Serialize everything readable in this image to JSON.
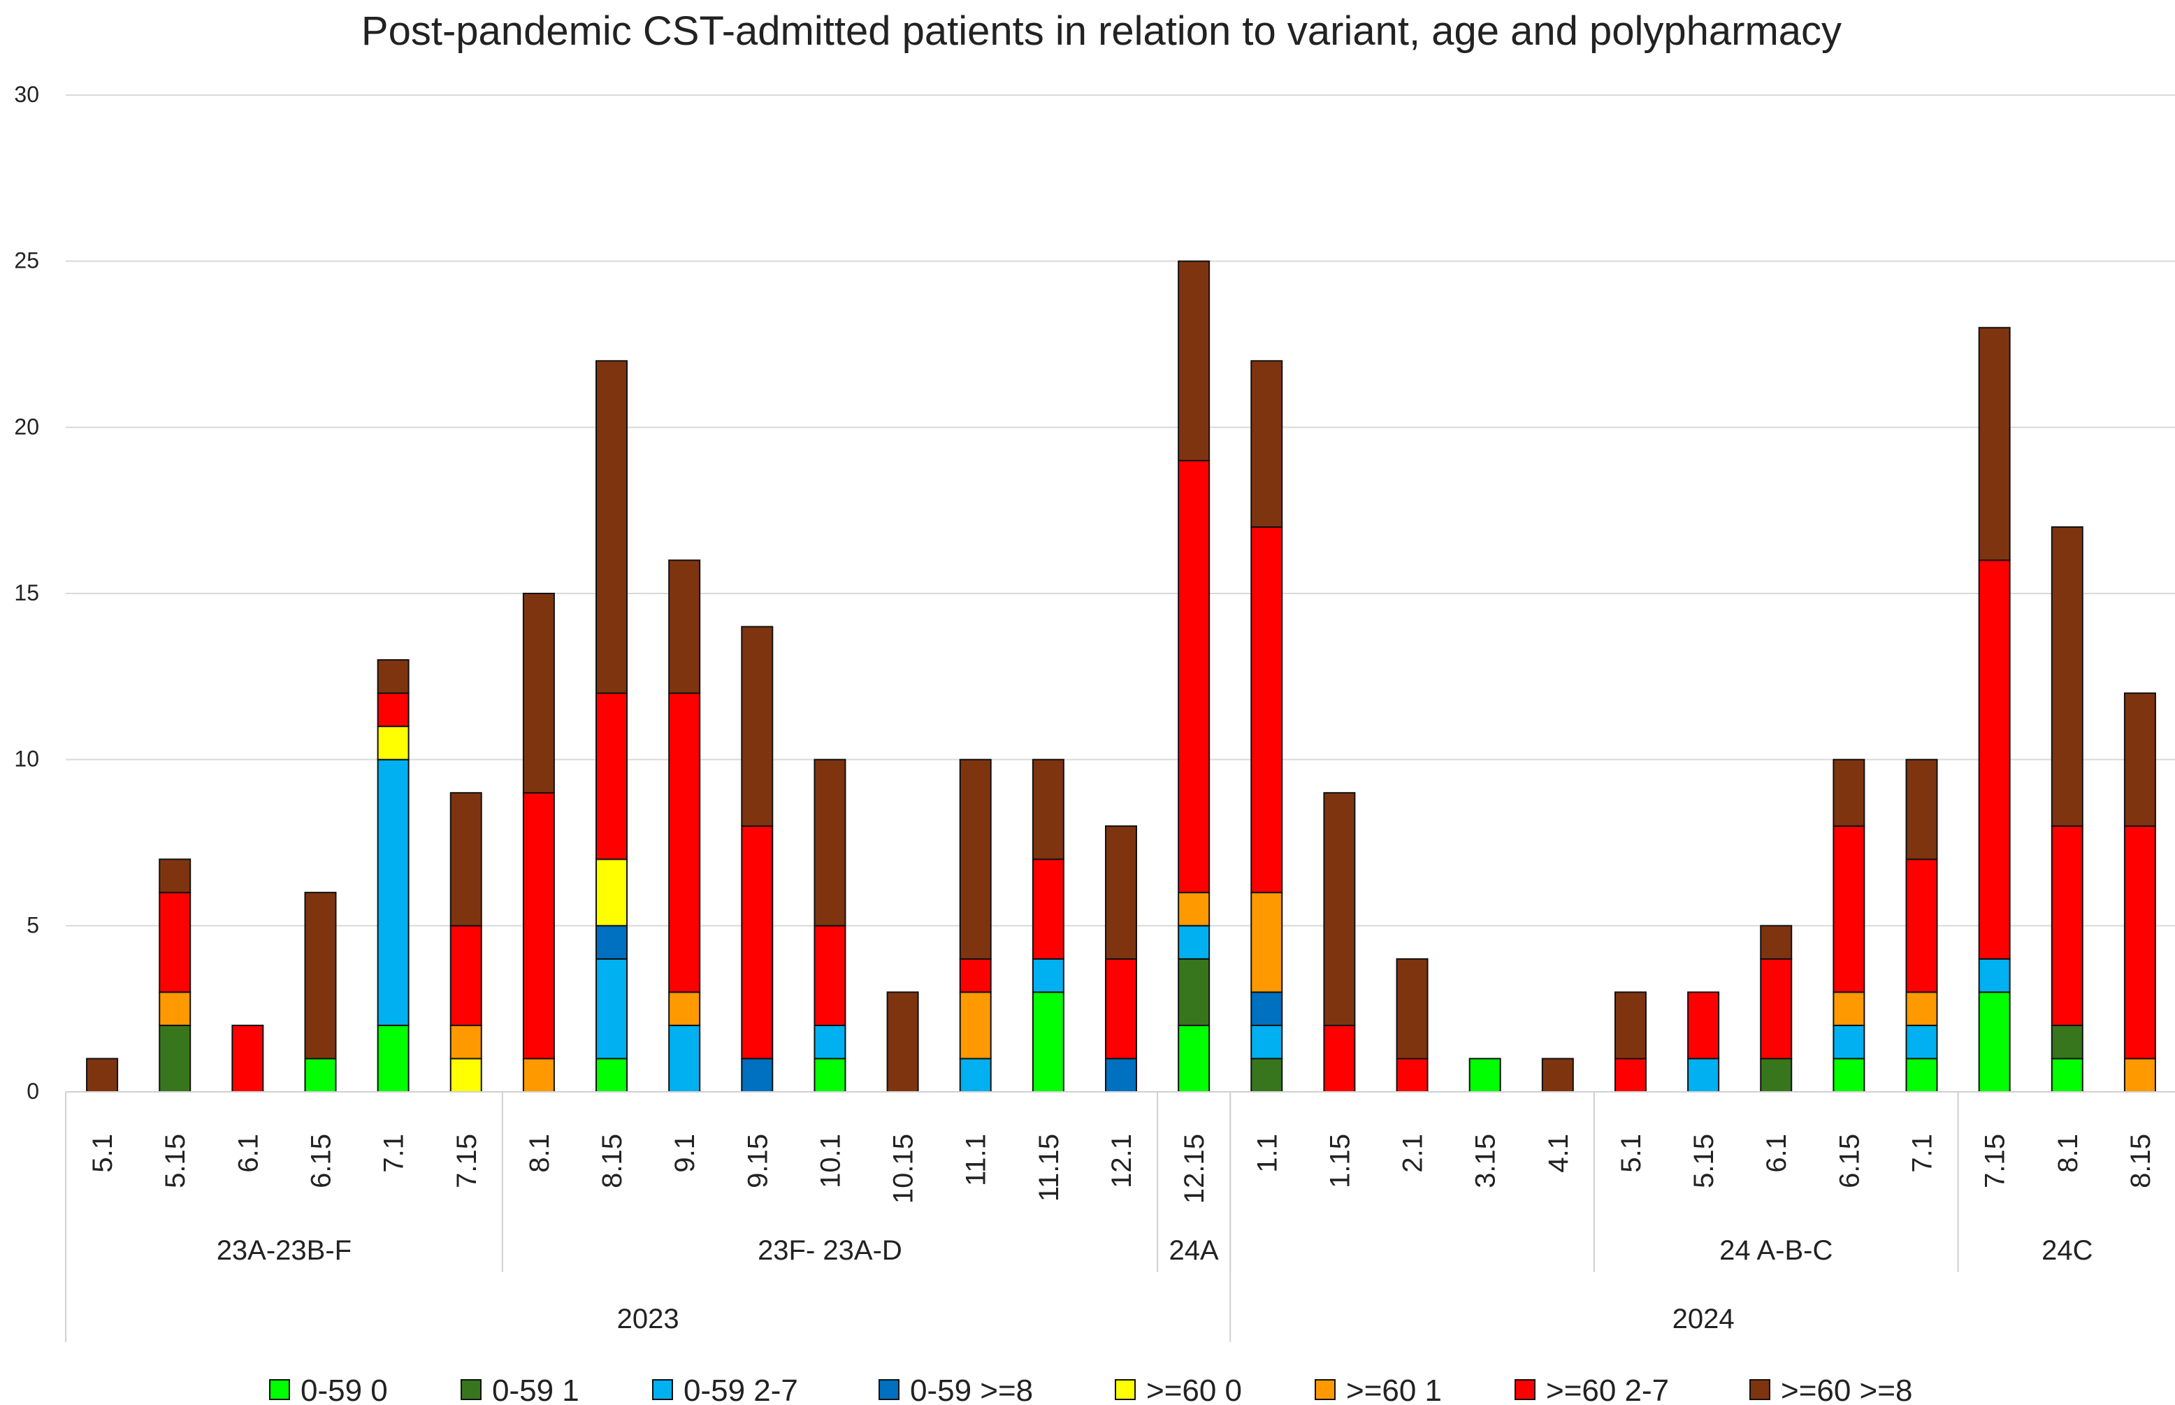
{
  "chart_data": {
    "type": "bar",
    "stacked": true,
    "title": "Post-pandemic CST-admitted patients in relation to variant, age and polypharmacy",
    "xlabel": "",
    "ylabel": "",
    "ylim": [
      0,
      30
    ],
    "yticks": [
      "0",
      "5",
      "10",
      "15",
      "20",
      "25",
      "30"
    ],
    "grid": true,
    "legend_position": "bottom",
    "categories": [
      "5.1",
      "5.15",
      "6.1",
      "6.15",
      "7.1",
      "7.15",
      "8.1",
      "8.15",
      "9.1",
      "9.15",
      "10.1",
      "10.15",
      "11.1",
      "11.15",
      "12.1",
      "12.15",
      "1.1",
      "1.15",
      "2.1",
      "3.15",
      "4.1",
      "5.1",
      "5.15",
      "6.1",
      "6.15",
      "7.1",
      "7.15",
      "8.1",
      "8.15"
    ],
    "variant_groups": [
      {
        "label": "23A-23B-F",
        "start": 0,
        "end": 5
      },
      {
        "label": "23F- 23A-D",
        "start": 6,
        "end": 14
      },
      {
        "label": "24A",
        "start": 15,
        "end": 15
      },
      {
        "label": "",
        "start": 16,
        "end": 20
      },
      {
        "label": "24 A-B-C",
        "start": 21,
        "end": 25
      },
      {
        "label": "24C",
        "start": 26,
        "end": 28
      }
    ],
    "year_groups": [
      {
        "label": "2023",
        "start": 0,
        "end": 15
      },
      {
        "label": "2024",
        "start": 16,
        "end": 28
      }
    ],
    "series": [
      {
        "name": "0-59 0",
        "color": "#00ff00",
        "values": [
          0,
          0,
          0,
          1,
          2,
          0,
          0,
          1,
          0,
          0,
          1,
          0,
          0,
          3,
          0,
          2,
          0,
          0,
          0,
          1,
          0,
          0,
          0,
          0,
          1,
          1,
          3,
          1,
          0
        ]
      },
      {
        "name": "0-59 1",
        "color": "#38761d",
        "values": [
          0,
          2,
          0,
          0,
          0,
          0,
          0,
          0,
          0,
          0,
          0,
          0,
          0,
          0,
          0,
          2,
          1,
          0,
          0,
          0,
          0,
          0,
          0,
          1,
          0,
          0,
          0,
          1,
          0
        ]
      },
      {
        "name": "0-59 2-7",
        "color": "#00b0f0",
        "values": [
          0,
          0,
          0,
          0,
          8,
          0,
          0,
          3,
          2,
          0,
          1,
          0,
          1,
          1,
          0,
          1,
          1,
          0,
          0,
          0,
          0,
          0,
          1,
          0,
          1,
          1,
          1,
          0,
          0
        ]
      },
      {
        "name": "0-59 >=8",
        "color": "#0070c0",
        "values": [
          0,
          0,
          0,
          0,
          0,
          0,
          0,
          1,
          0,
          1,
          0,
          0,
          0,
          0,
          1,
          0,
          1,
          0,
          0,
          0,
          0,
          0,
          0,
          0,
          0,
          0,
          0,
          0,
          0
        ]
      },
      {
        "name": ">=60 0",
        "color": "#ffff00",
        "values": [
          0,
          0,
          0,
          0,
          1,
          1,
          0,
          2,
          0,
          0,
          0,
          0,
          0,
          0,
          0,
          0,
          0,
          0,
          0,
          0,
          0,
          0,
          0,
          0,
          0,
          0,
          0,
          0,
          0
        ]
      },
      {
        "name": ">=60 1",
        "color": "#ff9900",
        "values": [
          0,
          1,
          0,
          0,
          0,
          1,
          1,
          0,
          1,
          0,
          0,
          0,
          2,
          0,
          0,
          1,
          3,
          0,
          0,
          0,
          0,
          0,
          0,
          0,
          1,
          1,
          0,
          0,
          1
        ]
      },
      {
        "name": ">=60 2-7",
        "color": "#ff0000",
        "values": [
          0,
          3,
          2,
          0,
          1,
          3,
          8,
          5,
          9,
          7,
          3,
          0,
          1,
          3,
          3,
          13,
          11,
          2,
          1,
          0,
          0,
          1,
          2,
          3,
          5,
          4,
          12,
          6,
          7
        ]
      },
      {
        "name": ">=60 >=8",
        "color": "#7f3410",
        "values": [
          1,
          1,
          0,
          5,
          1,
          4,
          6,
          10,
          4,
          6,
          5,
          3,
          6,
          3,
          4,
          6,
          5,
          7,
          3,
          0,
          1,
          2,
          0,
          1,
          2,
          3,
          7,
          9,
          4
        ]
      }
    ]
  }
}
